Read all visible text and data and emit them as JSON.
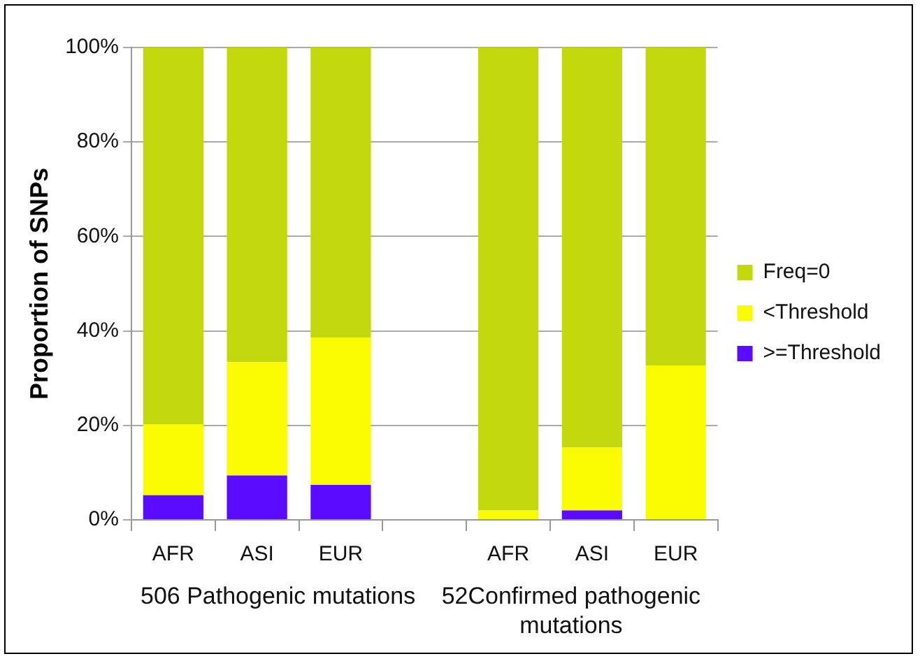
{
  "chart_data": {
    "type": "bar",
    "stacked": true,
    "ylabel": "Proportion of SNPs",
    "categories": [
      "AFR",
      "ASI",
      "EUR",
      null,
      "AFR",
      "ASI",
      "EUR"
    ],
    "series": [
      {
        "name": ">=Threshold",
        "color": "#5b0bff",
        "values": [
          5.2,
          9.4,
          7.4,
          null,
          0,
          2,
          0
        ]
      },
      {
        "name": "<Threshold",
        "color": "#fafa00",
        "values": [
          15,
          24,
          31.2,
          null,
          2,
          13.3,
          32.7
        ]
      },
      {
        "name": "Freq=0",
        "color": "#c2d80c",
        "values": [
          79.8,
          66.6,
          61.4,
          null,
          98,
          84.7,
          67.3
        ]
      }
    ],
    "ylim": [
      0,
      100
    ],
    "yticks": [
      {
        "value": 0,
        "label": "0%"
      },
      {
        "value": 20,
        "label": "20%"
      },
      {
        "value": 40,
        "label": "40%"
      },
      {
        "value": 60,
        "label": "60%"
      },
      {
        "value": 80,
        "label": "80%"
      },
      {
        "value": 100,
        "label": "100%"
      }
    ],
    "grid": "y",
    "legend": "right",
    "annotations": [
      "506 Pathogenic mutations",
      "52Confirmed pathogenic mutations"
    ]
  }
}
